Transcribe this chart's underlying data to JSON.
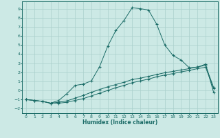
{
  "xlabel": "Humidex (Indice chaleur)",
  "bg_color": "#cce9e5",
  "grid_color": "#aad0cc",
  "line_color": "#1a6b66",
  "xlim": [
    -0.5,
    23.5
  ],
  "ylim": [
    -2.5,
    9.8
  ],
  "xticks": [
    0,
    1,
    2,
    3,
    4,
    5,
    6,
    7,
    8,
    9,
    10,
    11,
    12,
    13,
    14,
    15,
    16,
    17,
    18,
    19,
    20,
    21,
    22,
    23
  ],
  "yticks": [
    -2,
    -1,
    0,
    1,
    2,
    3,
    4,
    5,
    6,
    7,
    8,
    9
  ],
  "line1_x": [
    0,
    1,
    2,
    3,
    4,
    5,
    6,
    7,
    8,
    9,
    10,
    11,
    12,
    13,
    14,
    15,
    16,
    17,
    18,
    19,
    20,
    21,
    22,
    23
  ],
  "line1_y": [
    -1.0,
    -1.1,
    -1.2,
    -1.4,
    -1.4,
    -1.3,
    -1.1,
    -0.9,
    -0.6,
    -0.3,
    0.0,
    0.3,
    0.55,
    0.85,
    1.05,
    1.25,
    1.5,
    1.7,
    1.85,
    2.05,
    2.2,
    2.4,
    2.55,
    0.2
  ],
  "line2_x": [
    0,
    1,
    2,
    3,
    4,
    5,
    6,
    7,
    8,
    9,
    10,
    11,
    12,
    13,
    14,
    15,
    16,
    17,
    18,
    19,
    20,
    21,
    22,
    23
  ],
  "line2_y": [
    -1.0,
    -1.1,
    -1.2,
    -1.4,
    -1.3,
    -1.15,
    -0.85,
    -0.55,
    -0.2,
    0.1,
    0.4,
    0.65,
    0.9,
    1.2,
    1.35,
    1.55,
    1.75,
    1.95,
    2.1,
    2.25,
    2.4,
    2.6,
    2.75,
    0.3
  ],
  "line3_x": [
    0,
    1,
    2,
    3,
    4,
    5,
    6,
    7,
    8,
    9,
    10,
    11,
    12,
    13,
    14,
    15,
    16,
    17,
    18,
    19,
    20,
    21,
    22,
    23
  ],
  "line3_y": [
    -1.0,
    -1.1,
    -1.2,
    -1.4,
    -1.1,
    -0.35,
    0.55,
    0.7,
    1.05,
    2.6,
    4.85,
    6.6,
    7.7,
    9.1,
    9.0,
    8.85,
    7.3,
    5.0,
    3.85,
    3.35,
    2.5,
    2.55,
    2.9,
    -0.25
  ]
}
